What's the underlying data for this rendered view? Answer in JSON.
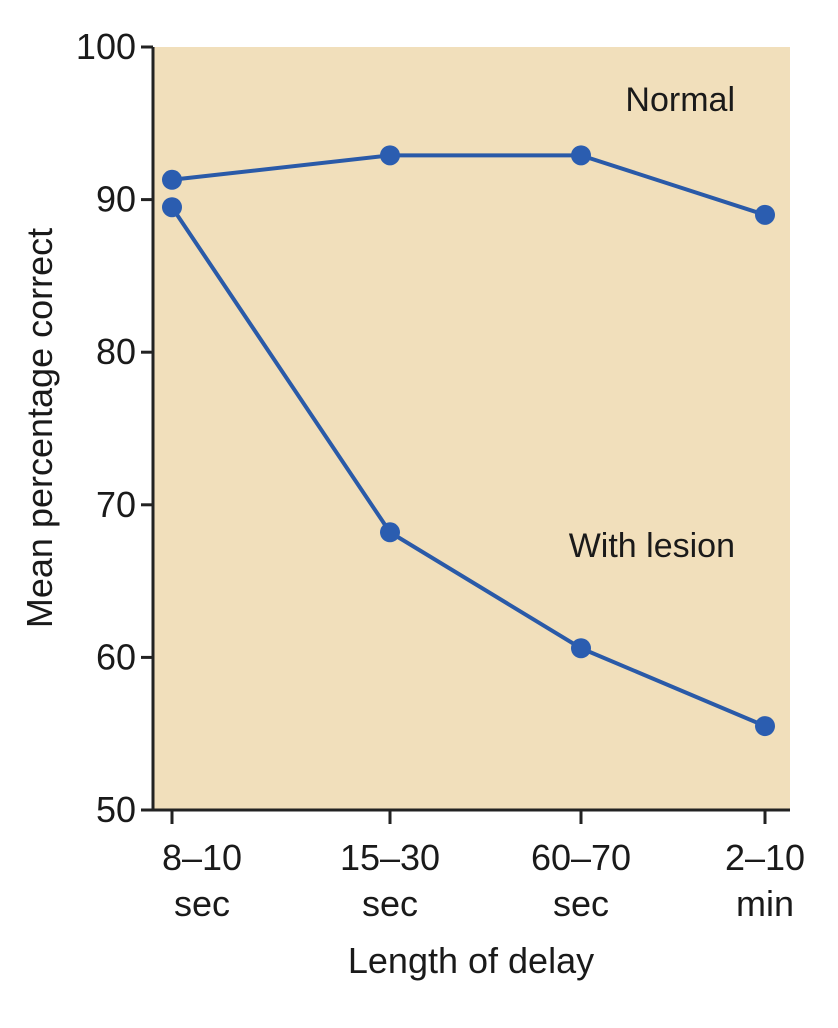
{
  "chart_data": {
    "type": "line",
    "xlabel": "Length of delay",
    "ylabel": "Mean percentage correct",
    "ylim": [
      50,
      100
    ],
    "yticks": [
      50,
      60,
      70,
      80,
      90,
      100
    ],
    "categories": [
      [
        "8–10",
        "sec"
      ],
      [
        "15–30",
        "sec"
      ],
      [
        "60–70",
        "sec"
      ],
      [
        "2–10",
        "min"
      ]
    ],
    "series": [
      {
        "name": "Normal",
        "values": [
          91.3,
          92.9,
          92.9,
          89.0
        ]
      },
      {
        "name": "With lesion",
        "values": [
          89.5,
          68.2,
          60.6,
          55.5
        ]
      }
    ],
    "grid": false,
    "colors": {
      "plot_background": "#f1dfbb",
      "line": "#2a5aa8",
      "marker": "#2b5db0",
      "axis": "#222222"
    }
  }
}
